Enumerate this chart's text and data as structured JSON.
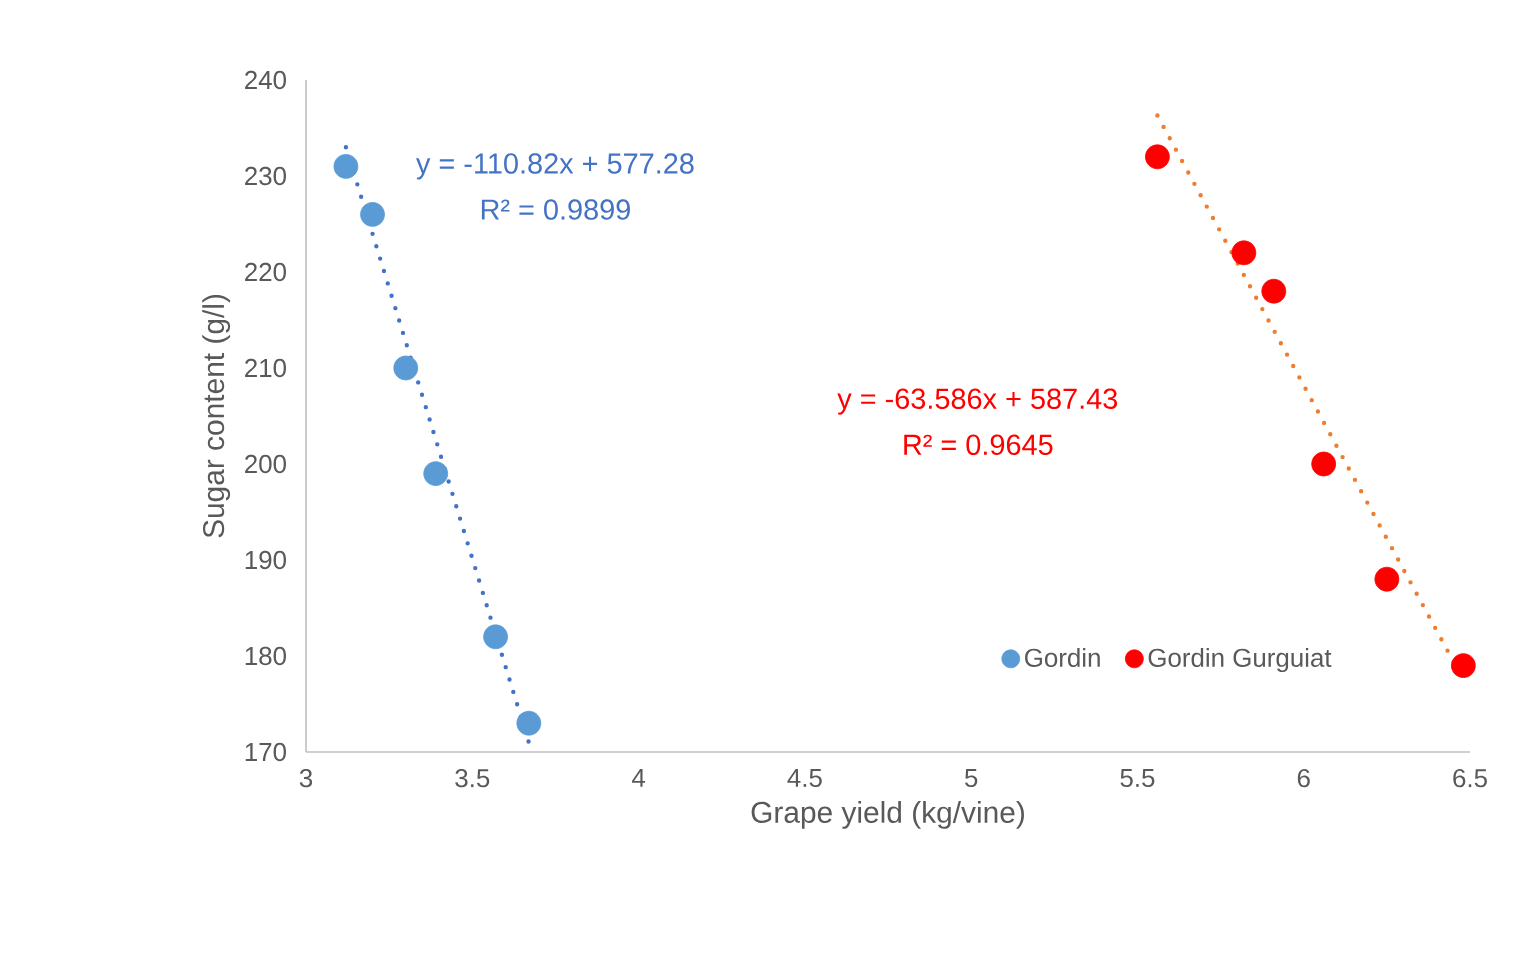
{
  "chart_data": {
    "type": "scatter",
    "xlabel": "Grape yield (kg/vine)",
    "ylabel": "Sugar content (g/l)",
    "xlim": [
      3,
      6.5
    ],
    "xticks": [
      3,
      3.5,
      4,
      4.5,
      5,
      5.5,
      6,
      6.5
    ],
    "ylim": [
      170,
      240
    ],
    "yticks": [
      170,
      180,
      190,
      200,
      210,
      220,
      230,
      240
    ],
    "grid": false,
    "legend": "bottom right",
    "series": [
      {
        "name": "Gordin",
        "color": "#5b9bd5",
        "marker": "circle",
        "x": [
          3.12,
          3.2,
          3.3,
          3.39,
          3.57,
          3.67
        ],
        "values": [
          231,
          226,
          210,
          199,
          182,
          173
        ]
      },
      {
        "name": "Gordin Gurguiat",
        "color": "#ff0000",
        "marker": "circle",
        "x": [
          5.56,
          5.82,
          5.91,
          6.06,
          6.25,
          6.48
        ],
        "values": [
          232,
          222,
          218,
          200,
          188,
          179
        ]
      },
      {
        "type": "line",
        "color": "#4472c4",
        "line_style": "dotted",
        "marker": "none",
        "x": [
          3.12,
          3.67
        ],
        "values": [
          233,
          171
        ]
      },
      {
        "type": "line",
        "color": "#ed7d31",
        "line_style": "dotted",
        "marker": "none",
        "x": [
          5.56,
          6.46
        ],
        "values": [
          236.3,
          178.8
        ]
      }
    ],
    "annotations": [
      "y = -110.82x + 577.28",
      "R² = 0.9899",
      "y = -63.586x + 587.43",
      "R² = 0.9645"
    ]
  }
}
